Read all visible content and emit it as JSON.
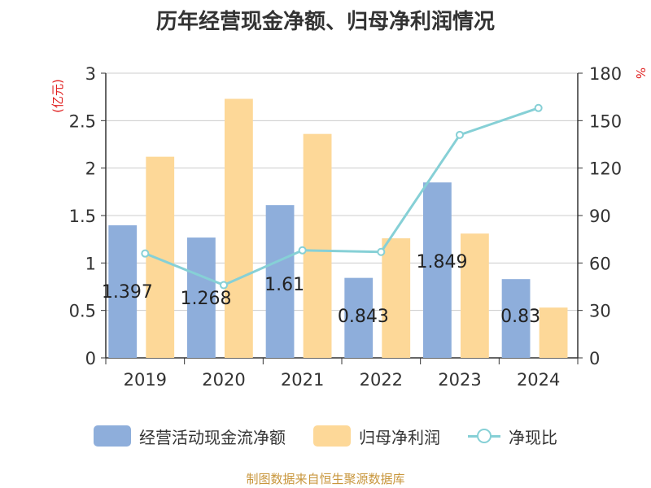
{
  "chart_data": {
    "type": "bar",
    "title": "历年经营现金净额、归母净利润情况",
    "categories": [
      "2019",
      "2020",
      "2021",
      "2022",
      "2023",
      "2024"
    ],
    "y_left": {
      "label": "(亿元)",
      "range": [
        0,
        3
      ],
      "ticks": [
        "0",
        "0.5",
        "1",
        "1.5",
        "2",
        "2.5",
        "3"
      ]
    },
    "y_right": {
      "label": "%",
      "range": [
        0,
        180
      ],
      "ticks": [
        "0",
        "30",
        "60",
        "90",
        "120",
        "150",
        "180"
      ]
    },
    "series": [
      {
        "name": "经营活动现金流净额",
        "type": "bar",
        "axis": "left",
        "color": "#8eaedb",
        "values": [
          1.397,
          1.268,
          1.61,
          0.843,
          1.849,
          0.83
        ],
        "labels": [
          "1.397",
          "1.268",
          "1.61",
          "0.843",
          "1.849",
          "0.83"
        ]
      },
      {
        "name": "归母净利润",
        "type": "bar",
        "axis": "left",
        "color": "#fdd898",
        "values": [
          2.12,
          2.73,
          2.36,
          1.26,
          1.31,
          0.53
        ]
      },
      {
        "name": "净现比",
        "type": "line",
        "axis": "right",
        "color": "#86d0d6",
        "values": [
          66,
          46,
          68,
          67,
          141,
          158
        ]
      }
    ],
    "grid": true,
    "legend_position": "bottom"
  },
  "source": "制图数据来自恒生聚源数据库"
}
